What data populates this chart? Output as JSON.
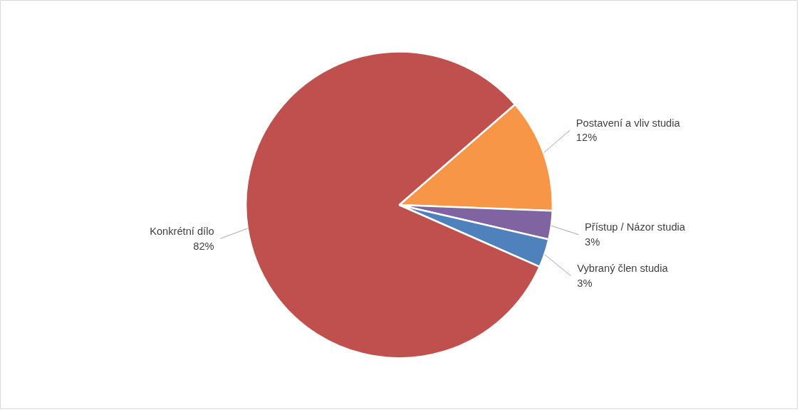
{
  "chart_data": {
    "type": "pie",
    "categories": [
      "Postavení a vliv studia",
      "Přístup / Názor studia",
      "Vybraný člen studia",
      "Konkrétní dílo"
    ],
    "values": [
      12,
      3,
      3,
      82
    ],
    "value_labels": [
      "12%",
      "3%",
      "3%",
      "82%"
    ],
    "colors": [
      "#f79646",
      "#8064a2",
      "#4f81bd",
      "#c0504d"
    ]
  }
}
